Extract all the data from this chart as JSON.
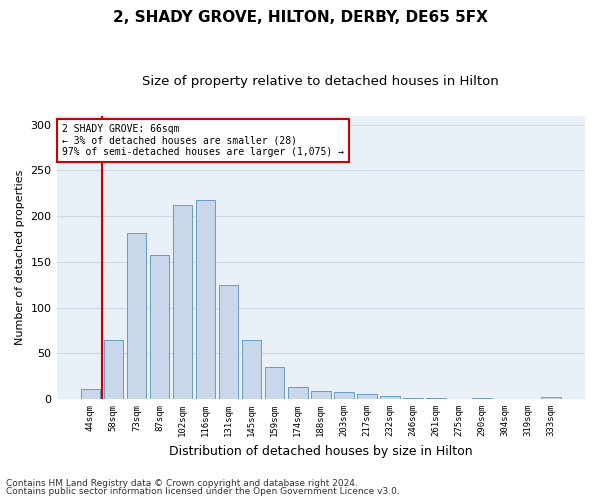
{
  "title1": "2, SHADY GROVE, HILTON, DERBY, DE65 5FX",
  "title2": "Size of property relative to detached houses in Hilton",
  "xlabel": "Distribution of detached houses by size in Hilton",
  "ylabel": "Number of detached properties",
  "categories": [
    "44sqm",
    "58sqm",
    "73sqm",
    "87sqm",
    "102sqm",
    "116sqm",
    "131sqm",
    "145sqm",
    "159sqm",
    "174sqm",
    "188sqm",
    "203sqm",
    "217sqm",
    "232sqm",
    "246sqm",
    "261sqm",
    "275sqm",
    "290sqm",
    "304sqm",
    "319sqm",
    "333sqm"
  ],
  "values": [
    11,
    65,
    182,
    158,
    212,
    218,
    125,
    65,
    35,
    13,
    9,
    8,
    5,
    3,
    1,
    1,
    0,
    1,
    0,
    0,
    2
  ],
  "bar_color": "#c8d8ea",
  "bar_edge_color": "#6a9cc0",
  "vline_pos": 0.5,
  "vline_color": "#cc0000",
  "annotation_text": "2 SHADY GROVE: 66sqm\n← 3% of detached houses are smaller (28)\n97% of semi-detached houses are larger (1,075) →",
  "annotation_box_color": "#ffffff",
  "annotation_box_edge": "#cc0000",
  "ylim": [
    0,
    310
  ],
  "yticks": [
    0,
    50,
    100,
    150,
    200,
    250,
    300
  ],
  "footnote1": "Contains HM Land Registry data © Crown copyright and database right 2024.",
  "footnote2": "Contains public sector information licensed under the Open Government Licence v3.0.",
  "grid_color": "#d0d8e8",
  "background_color": "#eaf0f8",
  "title1_fontsize": 11,
  "title2_fontsize": 9.5,
  "xlabel_fontsize": 9,
  "ylabel_fontsize": 8,
  "footnote_fontsize": 6.5
}
